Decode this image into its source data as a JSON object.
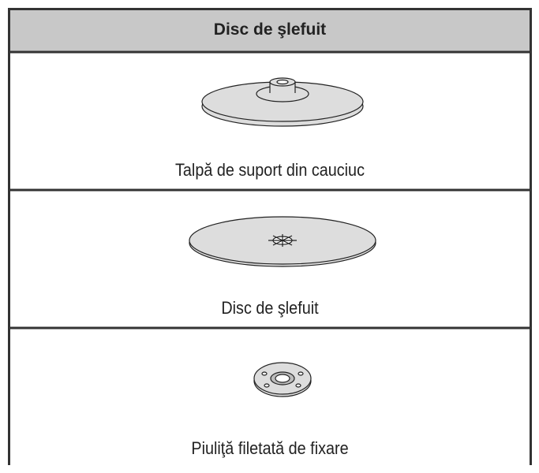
{
  "header": {
    "title": "Disc de şlefuit"
  },
  "rows": [
    {
      "label": "Talpă de suport din cauciuc"
    },
    {
      "label": "Disc de şlefuit"
    },
    {
      "label": "Piuliţă filetată de fixare"
    }
  ]
}
